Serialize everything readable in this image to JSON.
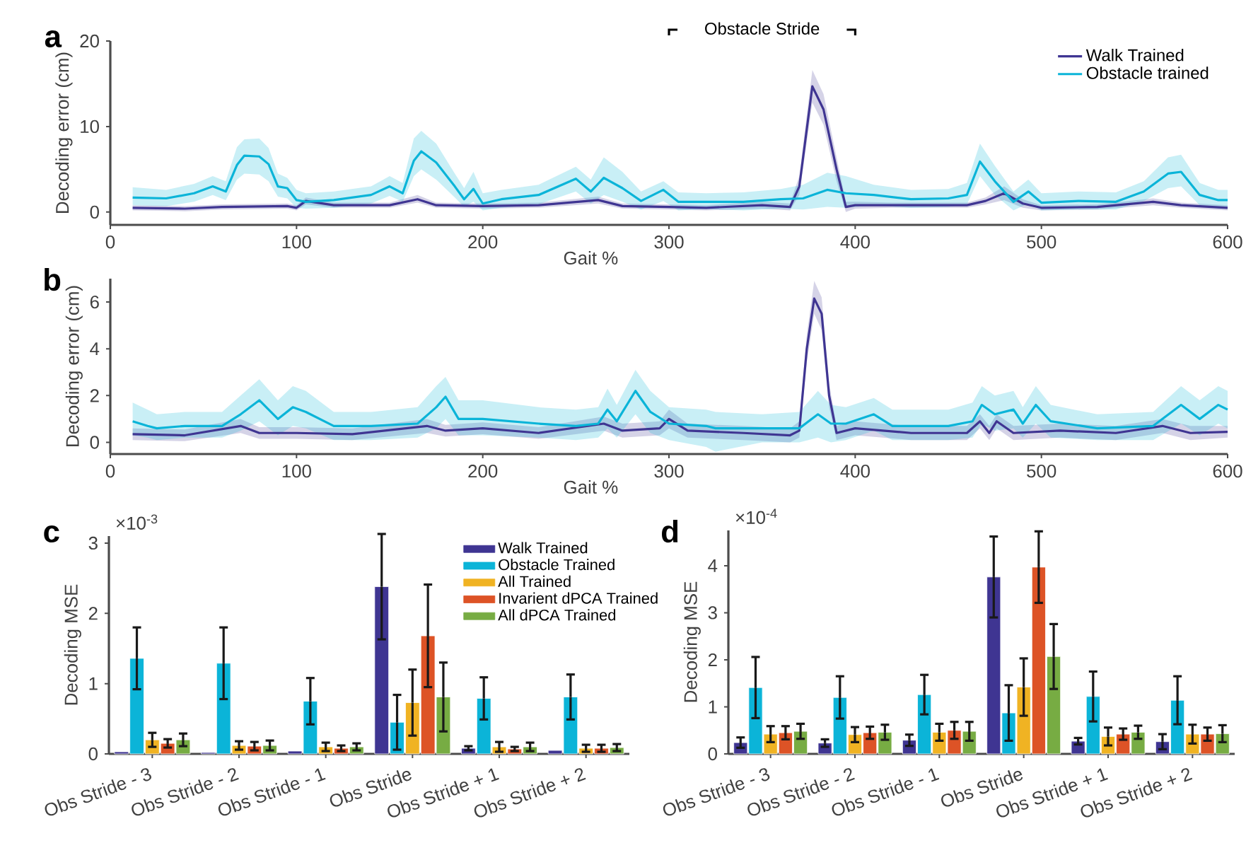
{
  "chart_data": [
    {
      "type": "line",
      "title": "a",
      "xlabel": "Gait %",
      "ylabel": "Decoding error (cm)",
      "xlim": [
        0,
        600
      ],
      "xticks": [
        0,
        100,
        200,
        300,
        400,
        500,
        600
      ],
      "ylim": [
        -1.5,
        20
      ],
      "yticks": [
        0,
        10,
        20
      ],
      "legend": "top right",
      "marker": "none",
      "line_style": "solid",
      "annotations": [
        "Obstacle Stride"
      ],
      "series": [
        {
          "name": "Walk Trained",
          "color": "#3f3592",
          "x": [
            12,
            40,
            60,
            95,
            100,
            105,
            120,
            150,
            165,
            175,
            200,
            230,
            262,
            275,
            300,
            320,
            350,
            365,
            370,
            377,
            383,
            390,
            395,
            400,
            420,
            440,
            460,
            470,
            480,
            490,
            500,
            530,
            560,
            575,
            600
          ],
          "values": [
            0.5,
            0.4,
            0.6,
            0.7,
            0.5,
            1.3,
            0.8,
            0.8,
            1.5,
            0.8,
            0.7,
            0.8,
            1.4,
            0.7,
            0.6,
            0.5,
            0.8,
            0.6,
            3.0,
            14.7,
            12.0,
            5.0,
            0.6,
            0.8,
            0.8,
            0.8,
            0.8,
            1.3,
            2.2,
            1.0,
            0.5,
            0.6,
            1.2,
            0.8,
            0.5
          ],
          "lower": [
            0.2,
            0.1,
            0.3,
            0.4,
            0.2,
            0.9,
            0.5,
            0.5,
            1.1,
            0.5,
            0.4,
            0.5,
            1.0,
            0.4,
            0.3,
            0.2,
            0.4,
            0.2,
            2.0,
            12.8,
            10.2,
            3.6,
            0.0,
            0.4,
            0.5,
            0.5,
            0.5,
            0.9,
            1.4,
            0.5,
            0.2,
            0.3,
            0.8,
            0.5,
            0.2
          ],
          "upper": [
            0.8,
            0.7,
            0.9,
            1.0,
            0.8,
            1.7,
            1.1,
            1.1,
            2.0,
            1.1,
            1.0,
            1.1,
            1.8,
            1.0,
            0.9,
            0.8,
            1.2,
            1.0,
            4.2,
            16.6,
            13.8,
            6.4,
            1.2,
            1.2,
            1.1,
            1.1,
            1.1,
            1.7,
            3.0,
            1.5,
            0.8,
            0.9,
            1.6,
            1.1,
            0.8
          ]
        },
        {
          "name": "Obstacle trained",
          "color": "#0bb4d8",
          "x": [
            12,
            30,
            45,
            55,
            62,
            68,
            72,
            80,
            85,
            90,
            95,
            100,
            105,
            120,
            140,
            150,
            157,
            163,
            167,
            175,
            185,
            190,
            195,
            200,
            210,
            230,
            250,
            258,
            265,
            275,
            285,
            297,
            305,
            320,
            340,
            360,
            372,
            385,
            395,
            410,
            430,
            450,
            460,
            467,
            475,
            485,
            493,
            500,
            520,
            540,
            555,
            568,
            575,
            585,
            595,
            600
          ],
          "values": [
            1.7,
            1.6,
            2.2,
            3.0,
            2.4,
            5.5,
            6.6,
            6.5,
            5.6,
            3.0,
            2.8,
            1.4,
            1.2,
            1.4,
            2.0,
            3.0,
            2.2,
            6.0,
            7.1,
            5.8,
            3.0,
            1.5,
            2.7,
            1.0,
            1.5,
            2.0,
            3.9,
            2.4,
            4.0,
            2.8,
            1.3,
            2.6,
            1.2,
            1.2,
            1.2,
            1.5,
            1.6,
            2.6,
            2.2,
            2.0,
            1.5,
            1.6,
            2.0,
            5.9,
            3.6,
            1.2,
            2.4,
            1.1,
            1.3,
            1.2,
            2.4,
            4.5,
            4.7,
            2.0,
            1.4,
            1.4
          ],
          "lower": [
            0.8,
            0.7,
            1.2,
            2.0,
            1.4,
            3.8,
            4.5,
            4.4,
            3.6,
            1.8,
            1.6,
            0.5,
            0.4,
            0.5,
            1.0,
            1.9,
            1.2,
            4.2,
            5.0,
            3.8,
            1.7,
            0.6,
            1.2,
            0.2,
            0.5,
            0.9,
            2.4,
            1.0,
            2.0,
            1.2,
            0.3,
            1.3,
            0.2,
            0.35,
            0.2,
            0.4,
            0.3,
            0.6,
            0.5,
            0.8,
            0.5,
            0.6,
            0.9,
            4.2,
            2.0,
            0.2,
            1.0,
            0.2,
            0.3,
            0.3,
            1.3,
            2.8,
            3.0,
            0.8,
            0.4,
            0.4
          ],
          "upper": [
            2.9,
            2.6,
            3.3,
            4.2,
            3.6,
            7.6,
            8.5,
            8.6,
            7.5,
            4.5,
            4.0,
            2.6,
            2.2,
            2.4,
            3.0,
            4.2,
            3.4,
            8.6,
            9.5,
            8.0,
            4.5,
            2.8,
            4.7,
            2.2,
            2.6,
            3.2,
            5.3,
            3.8,
            6.4,
            4.7,
            2.4,
            3.6,
            2.3,
            2.2,
            2.3,
            2.7,
            3.2,
            4.6,
            4.2,
            3.2,
            2.6,
            2.7,
            3.4,
            8.0,
            5.4,
            2.4,
            3.8,
            2.2,
            2.4,
            2.3,
            3.6,
            6.4,
            6.7,
            3.4,
            2.6,
            2.6
          ]
        }
      ]
    },
    {
      "type": "line",
      "title": "b",
      "xlabel": "Gait %",
      "ylabel": "Decoding error (cm)",
      "xlim": [
        0,
        600
      ],
      "xticks": [
        0,
        100,
        200,
        300,
        400,
        500,
        600
      ],
      "ylim": [
        -0.5,
        7
      ],
      "yticks": [
        0,
        2,
        4,
        6
      ],
      "marker": "none",
      "line_style": "solid",
      "series": [
        {
          "color": "#3f3592",
          "x": [
            12,
            40,
            70,
            80,
            100,
            130,
            170,
            180,
            200,
            230,
            265,
            275,
            295,
            300,
            310,
            340,
            365,
            370,
            374,
            378,
            382,
            386,
            390,
            400,
            430,
            460,
            467,
            472,
            476,
            485,
            510,
            540,
            565,
            580,
            600
          ],
          "values": [
            0.35,
            0.3,
            0.7,
            0.4,
            0.4,
            0.35,
            0.7,
            0.5,
            0.6,
            0.4,
            0.8,
            0.5,
            0.6,
            1.0,
            0.5,
            0.4,
            0.3,
            0.5,
            4.0,
            6.15,
            5.5,
            2.0,
            0.4,
            0.6,
            0.4,
            0.4,
            0.9,
            0.4,
            0.9,
            0.4,
            0.5,
            0.4,
            0.7,
            0.4,
            0.45
          ],
          "lower": [
            0.1,
            0.05,
            0.4,
            0.15,
            0.15,
            0.1,
            0.4,
            0.25,
            0.35,
            0.15,
            0.5,
            0.2,
            0.3,
            0.6,
            0.2,
            0.1,
            0.0,
            0.2,
            3.4,
            5.5,
            4.8,
            1.5,
            0.1,
            0.3,
            0.1,
            0.1,
            0.6,
            0.1,
            0.6,
            0.1,
            0.2,
            0.1,
            0.4,
            0.1,
            0.2
          ],
          "upper": [
            0.6,
            0.55,
            1.0,
            0.65,
            0.65,
            0.6,
            1.0,
            0.75,
            0.85,
            0.65,
            1.1,
            0.8,
            0.9,
            1.4,
            0.8,
            0.7,
            0.6,
            0.9,
            4.6,
            6.9,
            6.2,
            2.5,
            0.7,
            0.9,
            0.7,
            0.7,
            1.2,
            0.7,
            1.2,
            0.7,
            0.8,
            0.7,
            1.0,
            0.7,
            0.7
          ]
        },
        {
          "color": "#0bb4d8",
          "x": [
            12,
            20,
            25,
            40,
            60,
            70,
            80,
            90,
            98,
            105,
            120,
            140,
            165,
            175,
            180,
            187,
            200,
            230,
            250,
            262,
            267,
            272,
            282,
            290,
            300,
            320,
            325,
            350,
            370,
            380,
            387,
            395,
            410,
            420,
            450,
            463,
            468,
            475,
            485,
            490,
            497,
            505,
            530,
            560,
            575,
            585,
            595,
            600
          ],
          "values": [
            0.9,
            0.7,
            0.6,
            0.7,
            0.7,
            1.2,
            1.8,
            1.0,
            1.5,
            1.3,
            0.7,
            0.7,
            0.8,
            1.5,
            1.95,
            1.0,
            1.0,
            0.8,
            0.7,
            0.8,
            1.4,
            0.9,
            2.2,
            1.3,
            0.8,
            0.7,
            0.6,
            0.6,
            0.6,
            1.2,
            0.8,
            0.8,
            1.2,
            0.7,
            0.7,
            0.9,
            1.6,
            1.2,
            1.4,
            0.8,
            1.6,
            0.9,
            0.6,
            0.7,
            1.6,
            1.0,
            1.6,
            1.4
          ],
          "lower": [
            0.3,
            0.2,
            0.1,
            0.2,
            0.2,
            0.5,
            0.9,
            0.3,
            0.7,
            0.6,
            0.1,
            0.1,
            0.2,
            0.6,
            1.0,
            0.3,
            0.3,
            0.2,
            0.1,
            0.2,
            0.6,
            0.2,
            1.2,
            0.4,
            0.1,
            -0.2,
            -0.4,
            0.0,
            0.0,
            0.2,
            0.0,
            0.1,
            0.5,
            0.1,
            0.1,
            0.2,
            0.8,
            0.5,
            0.6,
            0.2,
            0.8,
            0.2,
            0.1,
            0.1,
            0.8,
            0.3,
            0.8,
            0.6
          ],
          "upper": [
            1.7,
            1.4,
            1.2,
            1.3,
            1.3,
            2.0,
            2.7,
            1.8,
            2.4,
            2.2,
            1.3,
            1.3,
            1.5,
            2.4,
            2.8,
            1.8,
            1.8,
            1.5,
            1.4,
            1.5,
            2.3,
            1.6,
            3.1,
            2.2,
            1.5,
            1.4,
            1.3,
            1.2,
            1.3,
            2.2,
            1.6,
            1.5,
            1.9,
            1.4,
            1.4,
            1.7,
            2.4,
            2.0,
            2.2,
            1.5,
            2.4,
            1.6,
            1.2,
            1.3,
            2.4,
            1.8,
            2.4,
            2.2
          ]
        }
      ]
    },
    {
      "type": "bar",
      "title": "c",
      "ylabel": "Decoding MSE",
      "categories": [
        "Obs Stride - 3",
        "Obs Stride - 2",
        "Obs Stride - 1",
        "Obs Stride",
        "Obs Stride + 1",
        "Obs Stride + 2"
      ],
      "ylim": [
        0,
        3.1
      ],
      "yticks": [
        0,
        1,
        2,
        3
      ],
      "legend": "top right",
      "annotations": [
        "×10$^{-3}$"
      ],
      "series": [
        {
          "name": "Walk Trained",
          "color": "#3f3592",
          "values": [
            0.03,
            0.02,
            0.04,
            2.38,
            0.08,
            0.05
          ],
          "errors": [
            null,
            null,
            null,
            0.75,
            0.03,
            null
          ]
        },
        {
          "name": "Obstacle Trained",
          "color": "#0bb4d8",
          "values": [
            1.36,
            1.29,
            0.75,
            0.45,
            0.79,
            0.81
          ],
          "errors": [
            0.44,
            0.51,
            0.33,
            0.39,
            0.3,
            0.32
          ]
        },
        {
          "name": "All Trained",
          "color": "#f0b323",
          "values": [
            0.2,
            0.12,
            0.1,
            0.73,
            0.1,
            0.08
          ],
          "errors": [
            0.1,
            0.06,
            0.06,
            0.47,
            0.07,
            0.05
          ]
        },
        {
          "name": "Invarient dPCA Trained",
          "color": "#dd5326",
          "values": [
            0.15,
            0.11,
            0.08,
            1.68,
            0.07,
            0.08
          ],
          "errors": [
            0.06,
            0.06,
            0.04,
            0.73,
            0.03,
            0.05
          ]
        },
        {
          "name": "All dPCA Trained",
          "color": "#77ac43",
          "values": [
            0.2,
            0.12,
            0.1,
            0.81,
            0.1,
            0.09
          ],
          "errors": [
            0.09,
            0.07,
            0.05,
            0.49,
            0.06,
            0.05
          ]
        }
      ]
    },
    {
      "type": "bar",
      "title": "d",
      "ylabel": "Decoding MSE",
      "categories": [
        "Obs Stride - 3",
        "Obs Stride - 2",
        "Obs Stride - 1",
        "Obs Stride",
        "Obs Stride + 1",
        "Obs Stride + 2"
      ],
      "ylim": [
        0,
        4.75
      ],
      "yticks": [
        0,
        1,
        2,
        3,
        4
      ],
      "annotations": [
        "×10$^{-4}$"
      ],
      "series": [
        {
          "color": "#3f3592",
          "values": [
            0.24,
            0.23,
            0.29,
            3.76,
            0.27,
            0.26
          ],
          "errors": [
            0.11,
            0.08,
            0.12,
            0.86,
            0.07,
            0.16
          ]
        },
        {
          "color": "#0bb4d8",
          "values": [
            1.41,
            1.2,
            1.26,
            0.87,
            1.22,
            1.14
          ],
          "errors": [
            0.65,
            0.45,
            0.42,
            0.59,
            0.53,
            0.51
          ]
        },
        {
          "color": "#f0b323",
          "values": [
            0.42,
            0.41,
            0.46,
            1.42,
            0.37,
            0.42
          ],
          "errors": [
            0.17,
            0.16,
            0.18,
            0.61,
            0.19,
            0.2
          ]
        },
        {
          "color": "#dd5326",
          "values": [
            0.45,
            0.45,
            0.5,
            3.97,
            0.42,
            0.42
          ],
          "errors": [
            0.14,
            0.13,
            0.18,
            0.76,
            0.12,
            0.14
          ]
        },
        {
          "color": "#77ac43",
          "values": [
            0.48,
            0.46,
            0.48,
            2.07,
            0.46,
            0.43
          ],
          "errors": [
            0.16,
            0.16,
            0.2,
            0.69,
            0.14,
            0.18
          ]
        }
      ]
    }
  ]
}
